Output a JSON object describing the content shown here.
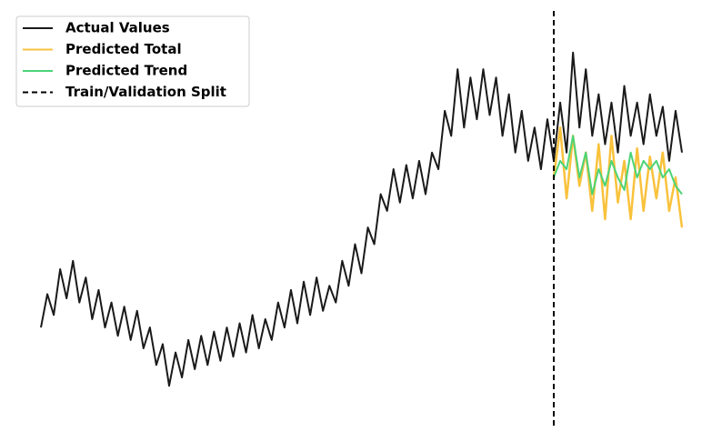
{
  "chart_data": {
    "type": "line",
    "xlim": [
      0,
      100
    ],
    "ylim": [
      0,
      100
    ],
    "series": [
      {
        "name": "Actual Values",
        "color": "#1a1a1a",
        "x": [
          0,
          1,
          2,
          3,
          4,
          5,
          6,
          7,
          8,
          9,
          10,
          11,
          12,
          13,
          14,
          15,
          16,
          17,
          18,
          19,
          20,
          21,
          22,
          23,
          24,
          25,
          26,
          27,
          28,
          29,
          30,
          31,
          32,
          33,
          34,
          35,
          36,
          37,
          38,
          39,
          40,
          41,
          42,
          43,
          44,
          45,
          46,
          47,
          48,
          49,
          50,
          51,
          52,
          53,
          54,
          55,
          56,
          57,
          58,
          59,
          60,
          61,
          62,
          63,
          64,
          65,
          66,
          67,
          68,
          69,
          70,
          71,
          72,
          73,
          74,
          75,
          76,
          77,
          78,
          79,
          80,
          81,
          82,
          83,
          84,
          85,
          86,
          87,
          88,
          89,
          90,
          91,
          92,
          93,
          94,
          95,
          96,
          97,
          98,
          99,
          100
        ],
        "values": [
          24,
          32,
          27,
          38,
          31,
          40,
          30,
          36,
          26,
          33,
          24,
          30,
          22,
          29,
          21,
          28,
          19,
          24,
          15,
          20,
          10,
          18,
          12,
          21,
          14,
          22,
          15,
          23,
          16,
          24,
          17,
          25,
          18,
          27,
          19,
          26,
          21,
          30,
          24,
          33,
          25,
          35,
          27,
          36,
          28,
          34,
          30,
          40,
          34,
          44,
          37,
          48,
          44,
          56,
          52,
          62,
          54,
          63,
          55,
          64,
          56,
          66,
          62,
          76,
          70,
          86,
          72,
          84,
          74,
          86,
          75,
          84,
          70,
          80,
          66,
          76,
          64,
          72,
          62,
          74,
          64,
          78,
          66,
          90,
          72,
          86,
          70,
          80,
          68,
          78,
          66,
          82,
          70,
          78,
          68,
          80,
          70,
          77,
          64,
          76,
          66
        ]
      },
      {
        "name": "Predicted Total",
        "color": "#f9c23c",
        "x": [
          80,
          81,
          82,
          83,
          84,
          85,
          86,
          87,
          88,
          89,
          90,
          91,
          92,
          93,
          94,
          95,
          96,
          97,
          98,
          99,
          100
        ],
        "values": [
          60,
          72,
          55,
          70,
          58,
          66,
          52,
          68,
          50,
          70,
          54,
          64,
          50,
          67,
          52,
          65,
          55,
          66,
          52,
          60,
          48
        ]
      },
      {
        "name": "Predicted Trend",
        "color": "#4cd477",
        "x": [
          80,
          81,
          82,
          83,
          84,
          85,
          86,
          87,
          88,
          89,
          90,
          91,
          92,
          93,
          94,
          95,
          96,
          97,
          98,
          99,
          100
        ],
        "values": [
          60,
          64,
          62,
          70,
          60,
          66,
          56,
          62,
          58,
          64,
          60,
          57,
          66,
          60,
          64,
          62,
          64,
          60,
          62,
          58,
          56
        ]
      }
    ],
    "split": {
      "name": "Train/Validation Split",
      "x": 80,
      "color": "#000000"
    },
    "legend": "upper left"
  }
}
